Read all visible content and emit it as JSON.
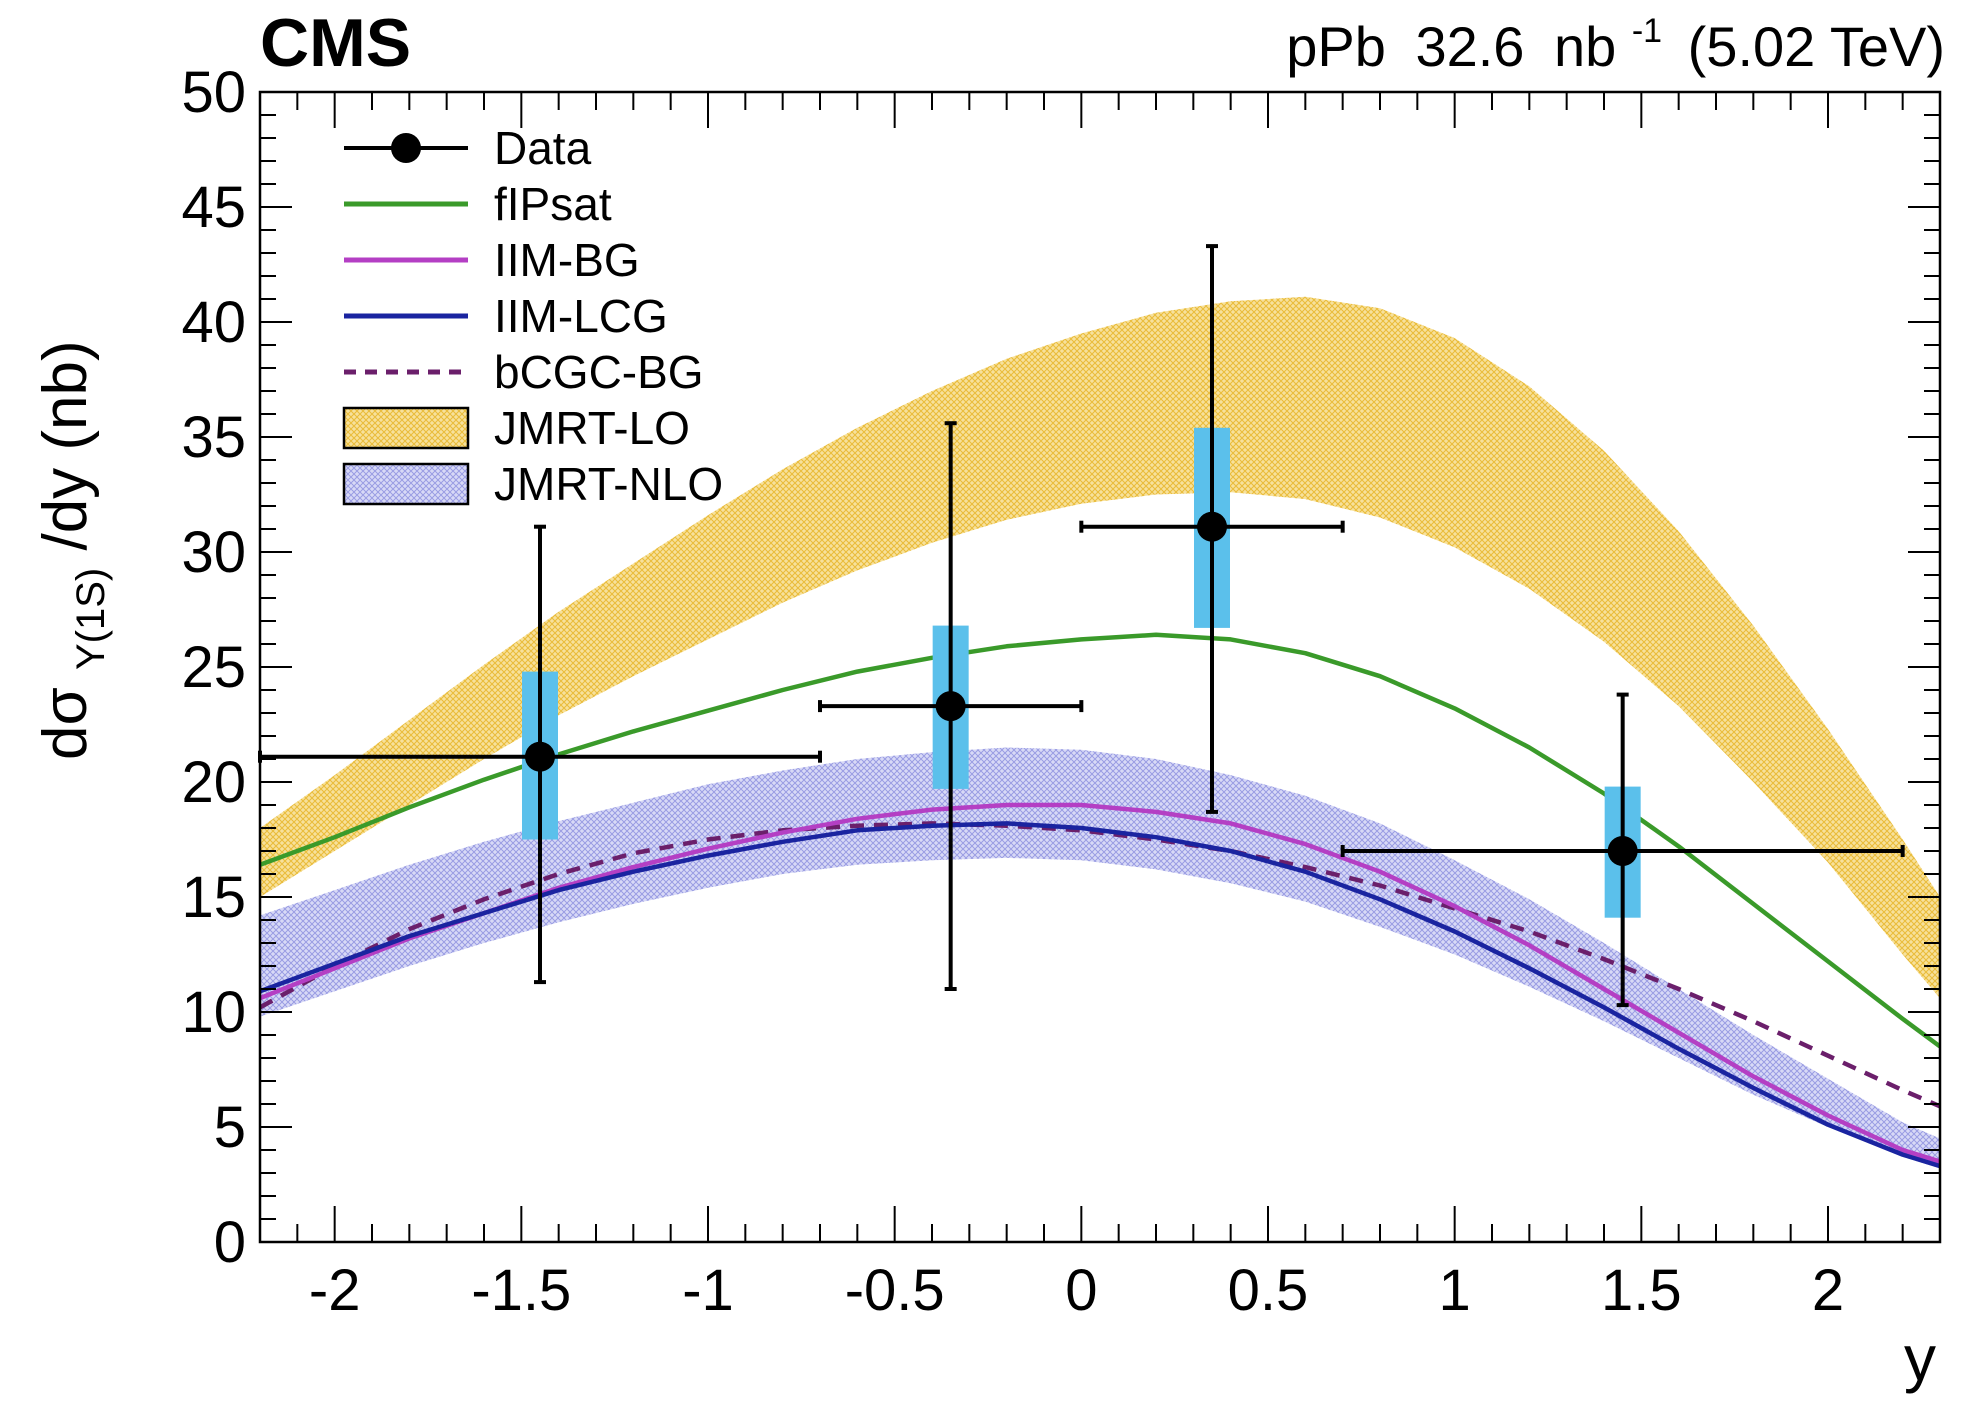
{
  "chart_data": {
    "type": "line",
    "experiment_label": "CMS",
    "luminosity_label": {
      "system": "pPb",
      "lumi_value": "32.6",
      "lumi_unit_base": "nb",
      "lumi_unit_exp": "-1",
      "energy": "(5.02 TeV)"
    },
    "ylabel": {
      "prefix": "dσ",
      "subscript": "Υ(1S)",
      "suffix": "/dy (nb)"
    },
    "xlabel": "y",
    "xlim": [
      -2.2,
      2.3
    ],
    "ylim": [
      0,
      50
    ],
    "x_ticks": [
      -2,
      -1.5,
      -1,
      -0.5,
      0,
      0.5,
      1,
      1.5,
      2
    ],
    "x_tick_labels": [
      "-2",
      "-1.5",
      "-1",
      "-0.5",
      "0",
      "0.5",
      "1",
      "1.5",
      "2"
    ],
    "y_ticks": [
      0,
      5,
      10,
      15,
      20,
      25,
      30,
      35,
      40,
      45,
      50
    ],
    "y_tick_labels": [
      "0",
      "5",
      "10",
      "15",
      "20",
      "25",
      "30",
      "35",
      "40",
      "45",
      "50"
    ],
    "legend": [
      {
        "key": "data",
        "label": "Data",
        "style": "marker"
      },
      {
        "key": "flpsat",
        "label": "fIPsat",
        "style": "line"
      },
      {
        "key": "iim_bg",
        "label": "IIM-BG",
        "style": "line"
      },
      {
        "key": "iim_lcg",
        "label": "IIM-LCG",
        "style": "line"
      },
      {
        "key": "bcgc_bg",
        "label": "bCGC-BG",
        "style": "dashed"
      },
      {
        "key": "jmrt_lo",
        "label": "JMRT-LO",
        "style": "band"
      },
      {
        "key": "jmrt_nlo",
        "label": "JMRT-NLO",
        "style": "band"
      }
    ],
    "colors": {
      "data": "#000000",
      "syst_box": "#5bc0eb",
      "flpsat": "#3a9a2a",
      "iim_bg": "#b43fc4",
      "iim_lcg": "#1a24a0",
      "bcgc_bg": "#6b1f6b",
      "jmrt_lo": "#f0c84a",
      "jmrt_nlo": "#a9acec"
    },
    "data_points": [
      {
        "x": -1.45,
        "y": 21.1,
        "x_lo": -2.2,
        "x_hi": -0.7,
        "stat_lo": 11.3,
        "stat_hi": 31.1,
        "syst_lo": 17.5,
        "syst_hi": 24.8
      },
      {
        "x": -0.35,
        "y": 23.3,
        "x_lo": -0.7,
        "x_hi": 0.0,
        "stat_lo": 11.0,
        "stat_hi": 35.6,
        "syst_lo": 19.7,
        "syst_hi": 26.8
      },
      {
        "x": 0.35,
        "y": 31.1,
        "x_lo": 0.0,
        "x_hi": 0.7,
        "stat_lo": 18.7,
        "stat_hi": 43.3,
        "syst_lo": 26.7,
        "syst_hi": 35.4
      },
      {
        "x": 1.45,
        "y": 17.0,
        "x_lo": 0.7,
        "x_hi": 2.2,
        "stat_lo": 10.3,
        "stat_hi": 23.8,
        "syst_lo": 14.1,
        "syst_hi": 19.8
      }
    ],
    "curves": {
      "x": [
        -2.2,
        -2.0,
        -1.8,
        -1.6,
        -1.4,
        -1.2,
        -1.0,
        -0.8,
        -0.6,
        -0.4,
        -0.2,
        0.0,
        0.2,
        0.4,
        0.6,
        0.8,
        1.0,
        1.2,
        1.4,
        1.6,
        1.8,
        2.0,
        2.2,
        2.3
      ],
      "flpsat": [
        16.4,
        17.6,
        18.9,
        20.1,
        21.2,
        22.2,
        23.1,
        24.0,
        24.8,
        25.4,
        25.9,
        26.2,
        26.4,
        26.2,
        25.6,
        24.6,
        23.2,
        21.5,
        19.5,
        17.2,
        14.7,
        12.2,
        9.7,
        8.5
      ],
      "iim_bg": [
        10.6,
        11.9,
        13.2,
        14.3,
        15.4,
        16.3,
        17.1,
        17.8,
        18.4,
        18.8,
        19.0,
        19.0,
        18.7,
        18.2,
        17.3,
        16.1,
        14.6,
        12.9,
        11.0,
        9.1,
        7.2,
        5.5,
        4.0,
        3.5
      ],
      "iim_lcg": [
        10.9,
        12.1,
        13.3,
        14.3,
        15.3,
        16.1,
        16.8,
        17.4,
        17.9,
        18.1,
        18.2,
        18.0,
        17.6,
        17.0,
        16.1,
        14.9,
        13.5,
        11.9,
        10.2,
        8.4,
        6.7,
        5.1,
        3.8,
        3.3
      ],
      "bcgc_bg": [
        10.2,
        12.0,
        13.6,
        14.9,
        16.0,
        16.9,
        17.5,
        17.9,
        18.1,
        18.2,
        18.1,
        17.9,
        17.5,
        17.0,
        16.3,
        15.5,
        14.5,
        13.5,
        12.3,
        11.0,
        9.6,
        8.1,
        6.6,
        5.9
      ],
      "jmrt_lo_low": [
        15.0,
        17.0,
        19.0,
        21.0,
        22.9,
        24.6,
        26.2,
        27.8,
        29.2,
        30.4,
        31.4,
        32.1,
        32.5,
        32.6,
        32.3,
        31.5,
        30.2,
        28.4,
        26.1,
        23.3,
        20.0,
        16.5,
        12.5,
        10.6
      ],
      "jmrt_lo_high": [
        18.0,
        20.3,
        22.7,
        25.1,
        27.4,
        29.5,
        31.6,
        33.6,
        35.4,
        37.0,
        38.4,
        39.5,
        40.4,
        40.9,
        41.1,
        40.6,
        39.3,
        37.2,
        34.4,
        30.9,
        26.8,
        22.3,
        17.5,
        15.0
      ],
      "jmrt_nlo_low": [
        9.8,
        10.9,
        12.0,
        13.0,
        13.9,
        14.7,
        15.4,
        16.0,
        16.4,
        16.6,
        16.7,
        16.6,
        16.2,
        15.6,
        14.8,
        13.7,
        12.5,
        11.1,
        9.6,
        8.0,
        6.4,
        5.0,
        3.7,
        3.2
      ],
      "jmrt_nlo_high": [
        14.2,
        15.3,
        16.4,
        17.4,
        18.3,
        19.1,
        19.9,
        20.5,
        21.0,
        21.3,
        21.5,
        21.4,
        21.0,
        20.3,
        19.4,
        18.2,
        16.6,
        14.9,
        13.0,
        11.0,
        9.0,
        7.1,
        5.2,
        4.5
      ]
    }
  }
}
